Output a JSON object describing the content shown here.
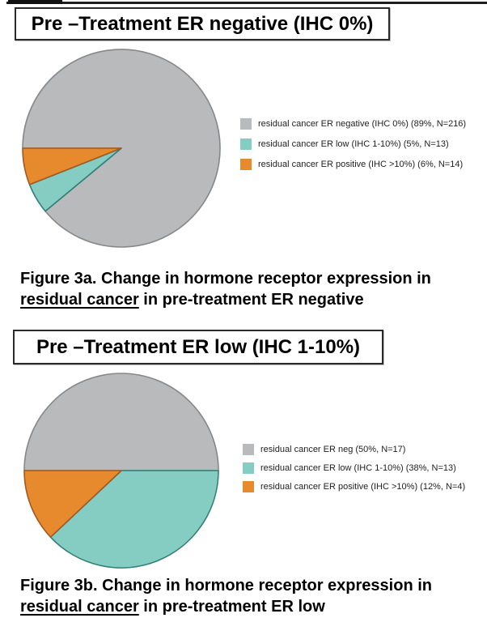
{
  "chart_data": [
    {
      "type": "pie",
      "title": "Pre –Treatment ER negative (IHC 0%)",
      "legend_position": "right",
      "start_angle": "9-oclock",
      "direction": "clockwise",
      "slices": [
        {
          "category": "residual cancer ER negative (IHC 0%)",
          "percent": 89,
          "n": 216,
          "label": "residual cancer ER negative (IHC 0%) (89%, N=216)",
          "color": "#b9babc",
          "stroke": "#85878a"
        },
        {
          "category": "residual cancer ER low (IHC 1-10%)",
          "percent": 5,
          "n": 13,
          "label": "residual cancer ER low (IHC 1-10%) (5%, N=13)",
          "color": "#85ccc3",
          "stroke": "#2e8076"
        },
        {
          "category": "residual cancer ER positive (IHC >10%)",
          "percent": 6,
          "n": 14,
          "label": "residual cancer ER positive (IHC >10%) (6%, N=14)",
          "color": "#e78a2e",
          "stroke": "#a2591f"
        }
      ],
      "caption": {
        "line1": "Figure 3a. Change in hormone receptor expression in",
        "underlined": "residual cancer",
        "line2_rest": " in pre-treatment ER negative"
      }
    },
    {
      "type": "pie",
      "title": "Pre –Treatment ER low (IHC 1-10%)",
      "legend_position": "right",
      "start_angle": "9-oclock",
      "direction": "clockwise",
      "slices": [
        {
          "category": "residual cancer ER neg",
          "percent": 50,
          "n": 17,
          "label": "residual cancer ER neg (50%, N=17)",
          "color": "#b9babc",
          "stroke": "#85878a"
        },
        {
          "category": "residual cancer ER low (IHC 1-10%)",
          "percent": 38,
          "n": 13,
          "label": "residual cancer ER low (IHC 1-10%) (38%, N=13)",
          "color": "#85ccc3",
          "stroke": "#2e8076"
        },
        {
          "category": "residual cancer ER positive (IHC >10%)",
          "percent": 12,
          "n": 4,
          "label": "residual cancer ER positive (IHC >10%) (12%, N=4)",
          "color": "#e78a2e",
          "stroke": "#a2591f"
        }
      ],
      "caption": {
        "line1": "Figure 3b. Change in hormone receptor expression in",
        "underlined": "residual cancer",
        "line2_rest": " in pre-treatment ER low"
      }
    }
  ]
}
